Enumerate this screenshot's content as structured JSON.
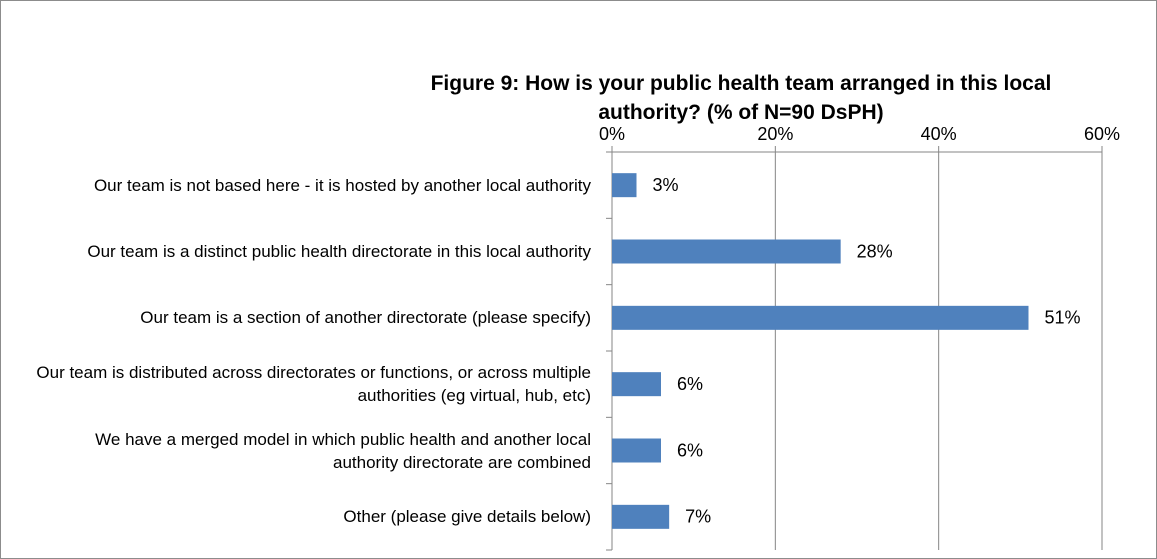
{
  "chart_data": {
    "type": "bar",
    "orientation": "horizontal",
    "title": "Figure 9: How is your public health team arranged in this local authority? (% of N=90 DsPH)",
    "categories": [
      "Our team is not based here - it is hosted by another local authority",
      "Our team is a distinct public health directorate in this local authority",
      "Our team is a section of another directorate (please specify)",
      "Our team is distributed across directorates or functions, or across multiple authorities (eg virtual, hub, etc)",
      "We have a merged model in which public health and another local authority directorate are combined",
      "Other (please give details below)"
    ],
    "values": [
      3,
      28,
      51,
      6,
      6,
      7
    ],
    "value_labels": [
      "3%",
      "28%",
      "51%",
      "6%",
      "6%",
      "7%"
    ],
    "color": "#4f81bd",
    "xlim": [
      0,
      60
    ],
    "xticks": [
      {
        "value": 0,
        "label": "0%"
      },
      {
        "value": 20,
        "label": "20%"
      },
      {
        "value": 40,
        "label": "40%"
      },
      {
        "value": 60,
        "label": "60%"
      }
    ],
    "grid": true
  }
}
